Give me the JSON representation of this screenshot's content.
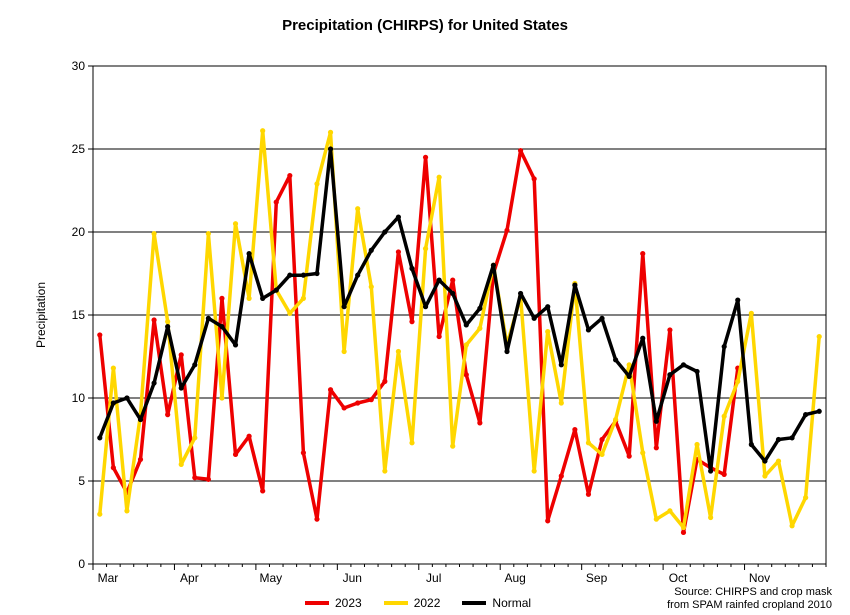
{
  "chart_data": {
    "type": "line",
    "title": "Precipitation (CHIRPS) for United States",
    "ylabel": "Precipitation",
    "xlabel": "",
    "ylim": [
      0,
      30
    ],
    "yticks": [
      0,
      5,
      10,
      15,
      20,
      25,
      30
    ],
    "xlim": [
      0,
      54
    ],
    "month_labels": [
      {
        "label": "Mar",
        "x": 0.5
      },
      {
        "label": "Apr",
        "x": 6.5
      },
      {
        "label": "May",
        "x": 12.5
      },
      {
        "label": "Jun",
        "x": 18.5
      },
      {
        "label": "Jul",
        "x": 24.5
      },
      {
        "label": "Aug",
        "x": 30.5
      },
      {
        "label": "Sep",
        "x": 36.5
      },
      {
        "label": "Oct",
        "x": 42.5
      },
      {
        "label": "Nov",
        "x": 48.5
      }
    ],
    "grid": true,
    "legend_position": "bottom",
    "series": [
      {
        "name": "2023",
        "color": "#ee0000",
        "values": [
          13.8,
          5.8,
          4.3,
          6.3,
          14.7,
          9.0,
          12.6,
          5.2,
          5.1,
          16.0,
          6.6,
          7.7,
          4.4,
          21.8,
          23.4,
          6.7,
          2.7,
          10.5,
          9.4,
          9.7,
          9.9,
          11.0,
          18.8,
          14.6,
          24.5,
          13.7,
          17.1,
          11.4,
          8.5,
          17.5,
          20.1,
          24.9,
          23.2,
          2.6,
          5.3,
          8.1,
          4.2,
          7.5,
          8.6,
          6.5,
          18.7,
          7.0,
          14.1,
          1.9,
          6.3,
          5.8,
          5.4,
          11.8
        ]
      },
      {
        "name": "2022",
        "color": "#ffd700",
        "values": [
          3.0,
          11.8,
          3.2,
          9.0,
          19.9,
          14.6,
          6.0,
          7.6,
          19.9,
          10.0,
          20.5,
          16.0,
          26.1,
          16.5,
          15.1,
          16.0,
          22.9,
          26.0,
          12.8,
          21.4,
          16.7,
          5.6,
          12.8,
          7.3,
          19.0,
          23.3,
          7.1,
          13.2,
          14.2,
          18.0,
          13.2,
          16.1,
          5.6,
          14.0,
          9.7,
          16.9,
          7.3,
          6.6,
          8.7,
          12.0,
          6.7,
          2.7,
          3.2,
          2.2,
          7.2,
          2.8,
          8.9,
          11.0,
          15.1,
          5.3,
          6.2,
          2.3,
          4.0,
          13.7
        ]
      },
      {
        "name": "Normal",
        "color": "#000000",
        "values": [
          7.6,
          9.7,
          10.0,
          8.7,
          10.9,
          14.3,
          10.6,
          12.0,
          14.8,
          14.3,
          13.2,
          18.7,
          16.0,
          16.5,
          17.4,
          17.4,
          17.5,
          25.0,
          15.5,
          17.4,
          18.9,
          20.0,
          20.9,
          17.8,
          15.5,
          17.1,
          16.3,
          14.4,
          15.4,
          18.0,
          12.8,
          16.3,
          14.8,
          15.5,
          12.0,
          16.8,
          14.1,
          14.8,
          12.3,
          11.3,
          13.6,
          8.6,
          11.4,
          12.0,
          11.6,
          5.6,
          13.1,
          15.9,
          7.2,
          6.2,
          7.5,
          7.6,
          9.0,
          9.2
        ]
      }
    ]
  },
  "source_note": {
    "line1": "Source: CHIRPS and crop mask",
    "line2": "from SPAM rainfed cropland 2010"
  },
  "legend": [
    {
      "label": "2023",
      "color": "#ee0000"
    },
    {
      "label": "2022",
      "color": "#ffd700"
    },
    {
      "label": "Normal",
      "color": "#000000"
    }
  ]
}
